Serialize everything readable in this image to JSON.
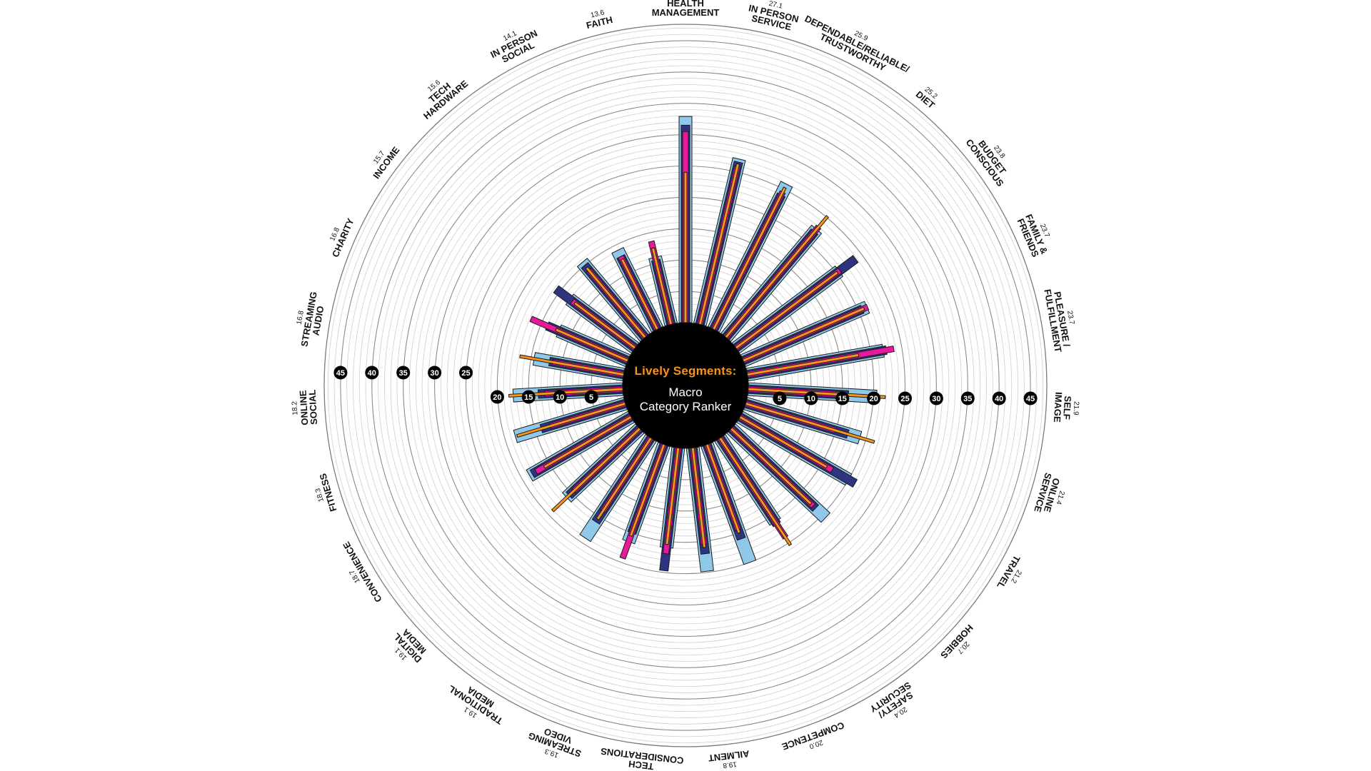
{
  "center": {
    "title": "Lively Segments:",
    "subtitle_line1": "Macro",
    "subtitle_line2": "Category Ranker"
  },
  "colors": {
    "light_blue": "#8fc8e8",
    "navy": "#2e3480",
    "magenta": "#e8199b",
    "orange": "#f7941d",
    "center_fill": "#000000",
    "grid": "#9a9a9a"
  },
  "chart_data": {
    "type": "radial-bar",
    "axis": {
      "ticks": [
        5,
        10,
        15,
        20,
        25,
        30,
        35,
        40,
        45
      ],
      "max": 45,
      "tick_labels": [
        "5",
        "10",
        "15",
        "20",
        "25",
        "30",
        "35",
        "40",
        "45"
      ]
    },
    "series": [],
    "categories": [
      {
        "label": [
          "HEALTH",
          "MANAGEMENT"
        ],
        "value": "32.9",
        "bars": {
          "light_blue": 32.9,
          "navy": 31.5,
          "magenta": 30.5,
          "orange": 24.0
        }
      },
      {
        "label": [
          "IN PERSON",
          "SERVICE"
        ],
        "value": "27.1",
        "bars": {
          "light_blue": 27.1,
          "navy": 26.6,
          "magenta": 25.9,
          "orange": 26.3
        }
      },
      {
        "label": [
          "DEPENDABLE/RELIABLE/",
          "TRUSTWORTHY"
        ],
        "value": "25.9",
        "bars": {
          "light_blue": 25.9,
          "navy": 24.0,
          "magenta": 24.5,
          "orange": 25.3
        }
      },
      {
        "label": [
          "DIET"
        ],
        "value": "25.2",
        "bars": {
          "light_blue": 22.5,
          "navy": 22.0,
          "magenta": 23.0,
          "orange": 25.2
        }
      },
      {
        "label": [
          "BUDGET",
          "CONSCIOUS"
        ],
        "value": "23.8",
        "bars": {
          "light_blue": 20.5,
          "navy": 23.8,
          "magenta": 20.7,
          "orange": 20.2
        }
      },
      {
        "label": [
          "FAMILY &",
          "FRIENDS"
        ],
        "value": "23.7",
        "bars": {
          "light_blue": 21.5,
          "navy": 20.7,
          "magenta": 21.6,
          "orange": 21.0
        }
      },
      {
        "label": [
          "PLEASURE /",
          "FULFILLMENT"
        ],
        "value": "23.7",
        "bars": {
          "light_blue": 22.0,
          "navy": 22.5,
          "magenta": 23.7,
          "orange": 18.0
        }
      },
      {
        "label": [
          "SELF",
          "IMAGE"
        ],
        "value": "21.9",
        "bars": {
          "light_blue": 20.5,
          "navy": 16.0,
          "magenta": 15.0,
          "orange": 21.9
        }
      },
      {
        "label": [
          "ONLINE",
          "SERVICE"
        ],
        "value": "21.4",
        "bars": {
          "light_blue": 19.0,
          "navy": 17.0,
          "magenta": 15.0,
          "orange": 21.4
        }
      },
      {
        "label": [
          "TRAVEL"
        ],
        "value": "21.2",
        "bars": {
          "light_blue": 20.0,
          "navy": 21.2,
          "magenta": 17.0,
          "orange": 16.0
        }
      },
      {
        "label": [
          "HOBBIES"
        ],
        "value": "20.7",
        "bars": {
          "light_blue": 20.7,
          "navy": 18.5,
          "magenta": 18.0,
          "orange": 17.5
        }
      },
      {
        "label": [
          "SAFETY/",
          "SECURITY"
        ],
        "value": "20.4",
        "bars": {
          "light_blue": 16.0,
          "navy": 16.5,
          "magenta": 19.0,
          "orange": 20.4
        }
      },
      {
        "label": [
          "COMPETENCE"
        ],
        "value": "20.0",
        "bars": {
          "light_blue": 20.0,
          "navy": 16.0,
          "magenta": 14.5,
          "orange": 15.0
        }
      },
      {
        "label": [
          "AILMENT"
        ],
        "value": "19.8",
        "bars": {
          "light_blue": 19.8,
          "navy": 17.0,
          "magenta": 15.5,
          "orange": 16.0
        }
      },
      {
        "label": [
          "TECH",
          "CONSIDERATIONS"
        ],
        "value": "19.7",
        "bars": {
          "light_blue": 16.0,
          "navy": 19.7,
          "magenta": 17.0,
          "orange": 15.5
        }
      },
      {
        "label": [
          "STREAMING",
          "VIDEO"
        ],
        "value": "19.3",
        "bars": {
          "light_blue": 16.5,
          "navy": 15.0,
          "magenta": 19.3,
          "orange": 15.5
        }
      },
      {
        "label": [
          "TRADITIONAL",
          "MEDIA"
        ],
        "value": "19.1",
        "bars": {
          "light_blue": 19.1,
          "navy": 16.0,
          "magenta": 14.0,
          "orange": 15.5
        }
      },
      {
        "label": [
          "DIGITAL",
          "MEDIA"
        ],
        "value": "19.1",
        "bars": {
          "light_blue": 16.0,
          "navy": 15.5,
          "magenta": 14.5,
          "orange": 19.1
        }
      },
      {
        "label": [
          "CONVENIENCE"
        ],
        "value": "18.7",
        "bars": {
          "light_blue": 18.7,
          "navy": 18.2,
          "magenta": 17.5,
          "orange": 16.0
        }
      },
      {
        "label": [
          "FITNESS"
        ],
        "value": "18.3",
        "bars": {
          "light_blue": 18.3,
          "navy": 14.0,
          "magenta": 12.5,
          "orange": 18.0
        }
      },
      {
        "label": [
          "ONLINE",
          "SOCIAL"
        ],
        "value": "18.2",
        "bars": {
          "light_blue": 17.5,
          "navy": 13.5,
          "magenta": 12.5,
          "orange": 18.2
        }
      },
      {
        "label": [
          "STREAMING",
          "AUDIO"
        ],
        "value": "16.8",
        "bars": {
          "light_blue": 14.5,
          "navy": 12.0,
          "magenta": 11.5,
          "orange": 16.8
        }
      },
      {
        "label": [
          "CHARITY"
        ],
        "value": "16.8",
        "bars": {
          "light_blue": 12.0,
          "navy": 14.0,
          "magenta": 16.8,
          "orange": 12.5
        }
      },
      {
        "label": [
          "INCOME"
        ],
        "value": "15.7",
        "bars": {
          "light_blue": 13.0,
          "navy": 15.7,
          "magenta": 12.5,
          "orange": 12.0
        }
      },
      {
        "label": [
          "TECH",
          "HARDWARE"
        ],
        "value": "15.6",
        "bars": {
          "light_blue": 15.6,
          "navy": 15.0,
          "magenta": 14.0,
          "orange": 14.5
        }
      },
      {
        "label": [
          "IN PERSON",
          "SOCIAL"
        ],
        "value": "14.1",
        "bars": {
          "light_blue": 14.1,
          "navy": 13.0,
          "magenta": 13.0,
          "orange": 12.5
        }
      },
      {
        "label": [
          "FAITH"
        ],
        "value": "13.6",
        "bars": {
          "light_blue": 11.0,
          "navy": 10.5,
          "magenta": 13.6,
          "orange": 12.5
        }
      }
    ]
  }
}
